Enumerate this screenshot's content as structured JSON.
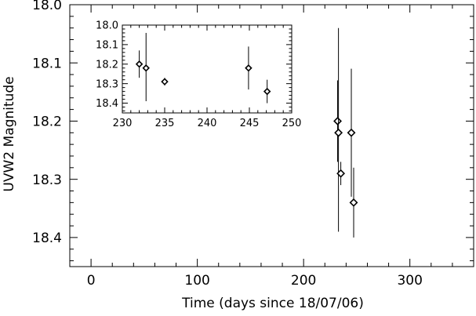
{
  "chart_data": [
    {
      "type": "scatter",
      "xlabel": "Time (days since 18/07/06)",
      "ylabel": "UVW2 Magnitude",
      "xlim": [
        -20,
        360
      ],
      "ylim": [
        18.45,
        18.0
      ],
      "y_inverted": true,
      "xticks": [
        0,
        100,
        200,
        300
      ],
      "xtick_labels": [
        "0",
        "100",
        "200",
        "300"
      ],
      "yticks": [
        18.0,
        18.1,
        18.2,
        18.3,
        18.4
      ],
      "ytick_labels": [
        "18.0",
        "18.1",
        "18.2",
        "18.3",
        "18.4"
      ],
      "marker": "diamond",
      "grid": false,
      "points": [
        {
          "x": 232.0,
          "y": 18.2,
          "yerr_low": 18.13,
          "yerr_high": 18.27
        },
        {
          "x": 232.8,
          "y": 18.22,
          "yerr_low": 18.04,
          "yerr_high": 18.39
        },
        {
          "x": 235.0,
          "y": 18.29,
          "yerr_low": 18.27,
          "yerr_high": 18.31
        },
        {
          "x": 244.9,
          "y": 18.22,
          "yerr_low": 18.11,
          "yerr_high": 18.33
        },
        {
          "x": 247.1,
          "y": 18.34,
          "yerr_low": 18.28,
          "yerr_high": 18.4
        }
      ]
    },
    {
      "type": "scatter",
      "inset": true,
      "xlim": [
        230,
        250
      ],
      "ylim": [
        18.45,
        18.0
      ],
      "y_inverted": true,
      "xticks": [
        230,
        235,
        240,
        245,
        250
      ],
      "xtick_labels": [
        "230",
        "235",
        "240",
        "245",
        "250"
      ],
      "yticks": [
        18.0,
        18.1,
        18.2,
        18.3,
        18.4
      ],
      "ytick_labels": [
        "18.0",
        "18.1",
        "18.2",
        "18.3",
        "18.4"
      ],
      "marker": "diamond",
      "grid": false,
      "points": [
        {
          "x": 232.0,
          "y": 18.2,
          "yerr_low": 18.13,
          "yerr_high": 18.27
        },
        {
          "x": 232.8,
          "y": 18.22,
          "yerr_low": 18.04,
          "yerr_high": 18.39
        },
        {
          "x": 235.0,
          "y": 18.29,
          "yerr_low": 18.27,
          "yerr_high": 18.31
        },
        {
          "x": 244.9,
          "y": 18.22,
          "yerr_low": 18.11,
          "yerr_high": 18.33
        },
        {
          "x": 247.1,
          "y": 18.34,
          "yerr_low": 18.28,
          "yerr_high": 18.4
        }
      ]
    }
  ]
}
